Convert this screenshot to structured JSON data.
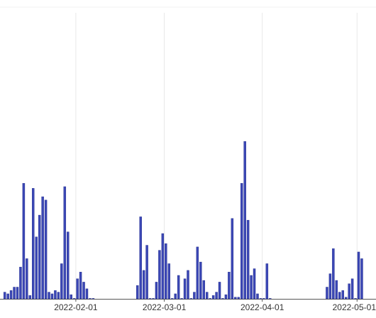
{
  "chart_data": {
    "type": "bar",
    "xlabel": "",
    "ylabel": "",
    "x_axis_type": "date",
    "xlim": [
      "2022-01-08",
      "2022-05-07"
    ],
    "ylim": [
      0,
      340
    ],
    "grid": {
      "vertical": true,
      "horizontal": false
    },
    "x_ticks": [
      "2022-02-01",
      "2022-03-01",
      "2022-04-01",
      "2022-05-01"
    ],
    "bar_color": "#3b47b5",
    "gridline_color": "#e8e8e8",
    "tick_color": "#333333",
    "series": [
      {
        "x": [
          "2022-01-09",
          "2022-01-10",
          "2022-01-11",
          "2022-01-12",
          "2022-01-13",
          "2022-01-14",
          "2022-01-15",
          "2022-01-16",
          "2022-01-17",
          "2022-01-18",
          "2022-01-19",
          "2022-01-20",
          "2022-01-21",
          "2022-01-22",
          "2022-01-23",
          "2022-01-24",
          "2022-01-25",
          "2022-01-26",
          "2022-01-27",
          "2022-01-28",
          "2022-01-29",
          "2022-01-30",
          "2022-01-31",
          "2022-02-01",
          "2022-02-02",
          "2022-02-03",
          "2022-02-04",
          "2022-02-05",
          "2022-02-06",
          "2022-02-20",
          "2022-02-21",
          "2022-02-22",
          "2022-02-23",
          "2022-02-24",
          "2022-02-25",
          "2022-02-26",
          "2022-02-27",
          "2022-02-28",
          "2022-03-01",
          "2022-03-02",
          "2022-03-03",
          "2022-03-04",
          "2022-03-05",
          "2022-03-06",
          "2022-03-07",
          "2022-03-08",
          "2022-03-09",
          "2022-03-10",
          "2022-03-11",
          "2022-03-12",
          "2022-03-13",
          "2022-03-14",
          "2022-03-15",
          "2022-03-16",
          "2022-03-17",
          "2022-03-18",
          "2022-03-19",
          "2022-03-20",
          "2022-03-21",
          "2022-03-22",
          "2022-03-23",
          "2022-03-24",
          "2022-03-25",
          "2022-03-26",
          "2022-03-27",
          "2022-03-28",
          "2022-03-29",
          "2022-03-30",
          "2022-03-31",
          "2022-04-01",
          "2022-04-02",
          "2022-04-03",
          "2022-04-21",
          "2022-04-22",
          "2022-04-23",
          "2022-04-24",
          "2022-04-25",
          "2022-04-26",
          "2022-04-27",
          "2022-04-28",
          "2022-04-29",
          "2022-04-30",
          "2022-05-01",
          "2022-05-02"
        ],
        "values": [
          8,
          6,
          10,
          14,
          14,
          38,
          138,
          48,
          4,
          132,
          74,
          100,
          122,
          118,
          8,
          6,
          10,
          8,
          42,
          134,
          80,
          5,
          0,
          24,
          32,
          20,
          12,
          0,
          0,
          16,
          98,
          34,
          64,
          0,
          0,
          20,
          58,
          78,
          66,
          42,
          0,
          6,
          28,
          0,
          24,
          34,
          0,
          8,
          62,
          44,
          22,
          8,
          0,
          4,
          8,
          20,
          0,
          5,
          32,
          96,
          2,
          2,
          138,
          188,
          94,
          28,
          36,
          6,
          0,
          0,
          42,
          0,
          14,
          30,
          60,
          22,
          8,
          10,
          2,
          18,
          24,
          0,
          56,
          48
        ]
      }
    ]
  }
}
